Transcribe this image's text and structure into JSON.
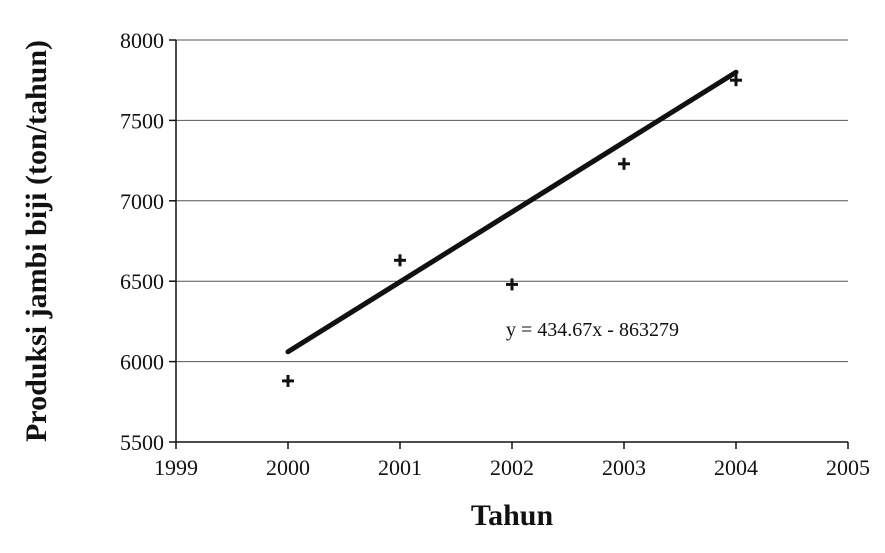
{
  "chart_data": {
    "type": "scatter",
    "title": "",
    "xlabel": "Tahun",
    "ylabel": "Produksi jambi biji (ton/tahun)",
    "xlim": [
      1999,
      2005
    ],
    "ylim": [
      5500,
      8000
    ],
    "x_ticks": [
      1999,
      2000,
      2001,
      2002,
      2003,
      2004,
      2005
    ],
    "y_ticks": [
      5500,
      6000,
      6500,
      7000,
      7500,
      8000
    ],
    "grid": "horizontal",
    "legend": "none",
    "series": [
      {
        "x": [
          2000,
          2001,
          2002,
          2003,
          2004
        ],
        "y": [
          5880,
          6630,
          6480,
          7230,
          7750
        ],
        "marker": "plus",
        "color": "#111111"
      }
    ],
    "trendline": {
      "type": "linear",
      "slope": 434.67,
      "intercept": -863279,
      "x_range": [
        2000,
        2004
      ],
      "color": "#111111",
      "label": "y = 434.67x - 863279"
    }
  }
}
